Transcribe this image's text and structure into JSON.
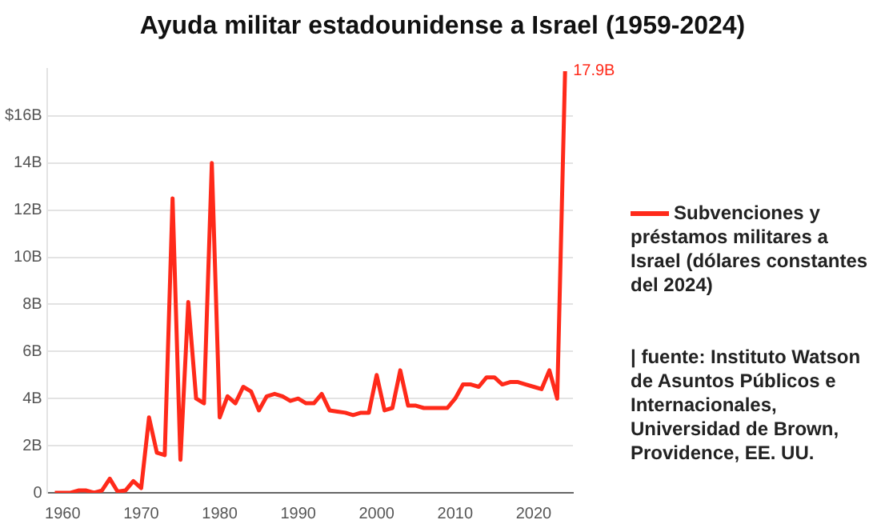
{
  "chart_data": {
    "type": "line",
    "title": "Ayuda militar estadounidense a Israel (1959-2024)",
    "x": [
      1959,
      1960,
      1961,
      1962,
      1963,
      1964,
      1965,
      1966,
      1967,
      1968,
      1969,
      1970,
      1971,
      1972,
      1973,
      1974,
      1975,
      1976,
      1977,
      1978,
      1979,
      1980,
      1981,
      1982,
      1983,
      1984,
      1985,
      1986,
      1987,
      1988,
      1989,
      1990,
      1991,
      1992,
      1993,
      1994,
      1995,
      1996,
      1997,
      1998,
      1999,
      2000,
      2001,
      2002,
      2003,
      2004,
      2005,
      2006,
      2007,
      2008,
      2009,
      2010,
      2011,
      2012,
      2013,
      2014,
      2015,
      2016,
      2017,
      2018,
      2019,
      2020,
      2021,
      2022,
      2023,
      2024
    ],
    "series": [
      {
        "name": "Subvenciones y préstamos militares a Israel (dólares constantes del 2024)",
        "color": "#ff2a1a",
        "values": [
          0,
          0,
          0,
          0.1,
          0.1,
          0,
          0.1,
          0.6,
          0.05,
          0.1,
          0.5,
          0.2,
          3.2,
          1.7,
          1.6,
          12.5,
          1.4,
          8.1,
          4.0,
          3.8,
          14.0,
          3.2,
          4.1,
          3.8,
          4.5,
          4.3,
          3.5,
          4.1,
          4.2,
          4.1,
          3.9,
          4.0,
          3.8,
          3.8,
          4.2,
          3.5,
          3.45,
          3.4,
          3.3,
          3.4,
          3.4,
          5.0,
          3.5,
          3.6,
          5.2,
          3.7,
          3.7,
          3.6,
          3.6,
          3.6,
          3.6,
          4.0,
          4.6,
          4.6,
          4.5,
          4.9,
          4.9,
          4.6,
          4.7,
          4.7,
          4.6,
          4.5,
          4.4,
          5.2,
          4.0,
          17.9
        ]
      }
    ],
    "xlim": [
      1958,
      2025
    ],
    "xticks": [
      1960,
      1970,
      1980,
      1990,
      2000,
      2010,
      2020
    ],
    "ylim": [
      0,
      18
    ],
    "yticks": [
      0,
      {
        "value": 2,
        "label": "2B"
      },
      {
        "value": 4,
        "label": "4B"
      },
      {
        "value": 6,
        "label": "6B"
      },
      {
        "value": 8,
        "label": "8B"
      },
      {
        "value": 10,
        "label": "10B"
      },
      {
        "value": 12,
        "label": "12B"
      },
      {
        "value": 14,
        "label": "14B"
      },
      {
        "value": 16,
        "label": "$16B"
      }
    ],
    "grid": "y",
    "legend": "right",
    "marker": "none",
    "line_style": "solid",
    "annotations": [
      {
        "text": "17.9B",
        "x": 2024,
        "y": 17.9
      },
      "| fuente: Instituto Watson de Asuntos Públicos e Internacionales, Universidad de Brown, Providence, EE. UU."
    ]
  }
}
